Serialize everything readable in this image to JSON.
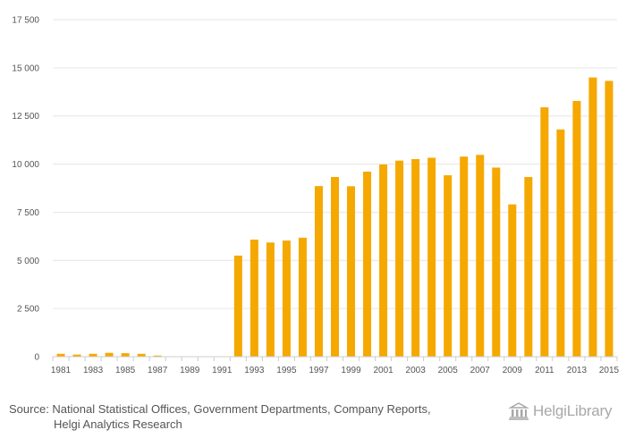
{
  "chart_data": {
    "type": "bar",
    "categories": [
      "1981",
      "1982",
      "1983",
      "1984",
      "1985",
      "1986",
      "1987",
      "1988",
      "1989",
      "1990",
      "1991",
      "1992",
      "1993",
      "1994",
      "1995",
      "1996",
      "1997",
      "1998",
      "1999",
      "2000",
      "2001",
      "2002",
      "2003",
      "2004",
      "2005",
      "2006",
      "2007",
      "2008",
      "2009",
      "2010",
      "2011",
      "2012",
      "2013",
      "2014",
      "2015"
    ],
    "x_tick_labels": [
      "1981",
      "1983",
      "1985",
      "1987",
      "1989",
      "1991",
      "1993",
      "1995",
      "1997",
      "1999",
      "2001",
      "2003",
      "2005",
      "2007",
      "2009",
      "2011",
      "2013",
      "2015"
    ],
    "values": [
      150,
      110,
      150,
      200,
      180,
      150,
      60,
      0,
      0,
      0,
      0,
      5250,
      6080,
      5930,
      6030,
      6180,
      8860,
      9330,
      8850,
      9610,
      9980,
      10180,
      10260,
      10330,
      9420,
      10390,
      10480,
      9820,
      7910,
      9330,
      12950,
      11800,
      13280,
      14500,
      14320
    ],
    "ylim": [
      0,
      17500
    ],
    "y_ticks": [
      0,
      2500,
      5000,
      7500,
      10000,
      12500,
      15000,
      17500
    ],
    "y_tick_labels": [
      "0",
      "2 500",
      "5 000",
      "7 500",
      "10 000",
      "12 500",
      "15 000",
      "17 500"
    ],
    "bar_color": "#f5a800",
    "grid": true,
    "title": "",
    "xlabel": "",
    "ylabel": ""
  },
  "footer": {
    "source_line1": "Source: National Statistical Offices, Government Departments, Company Reports,",
    "source_line2": "Helgi Analytics Research",
    "brand": "HelgiLibrary"
  },
  "colors": {
    "grid": "#e6e6e6",
    "axis": "#cccccc",
    "text": "#555555",
    "brand": "#a8a8a8"
  }
}
